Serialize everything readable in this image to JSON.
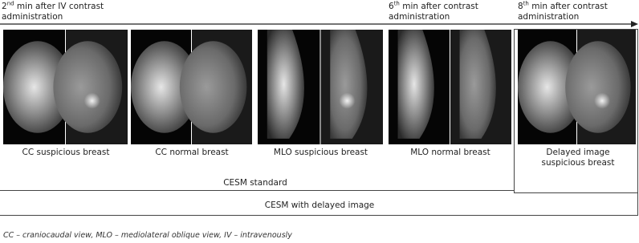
{
  "timeline": [
    {
      "ordinal": "2",
      "suffix": "nd",
      "text": "min after IV contrast administration"
    },
    {
      "ordinal": "6",
      "suffix": "th",
      "text": "min after contrast administration"
    },
    {
      "ordinal": "8",
      "suffix": "th",
      "text": "min after contrast administration"
    }
  ],
  "panels": [
    {
      "label": "CC suspicious breast"
    },
    {
      "label": "CC normal breast"
    },
    {
      "label": "MLO suspicious breast"
    },
    {
      "label": "MLO normal breast"
    },
    {
      "label": "Delayed image suspicious breast"
    }
  ],
  "brackets": {
    "standard": "CESM standard",
    "delayed": "CESM with delayed image"
  },
  "caption": "CC – craniocaudal view, MLO – mediolateral oblique view, IV – intravenously"
}
